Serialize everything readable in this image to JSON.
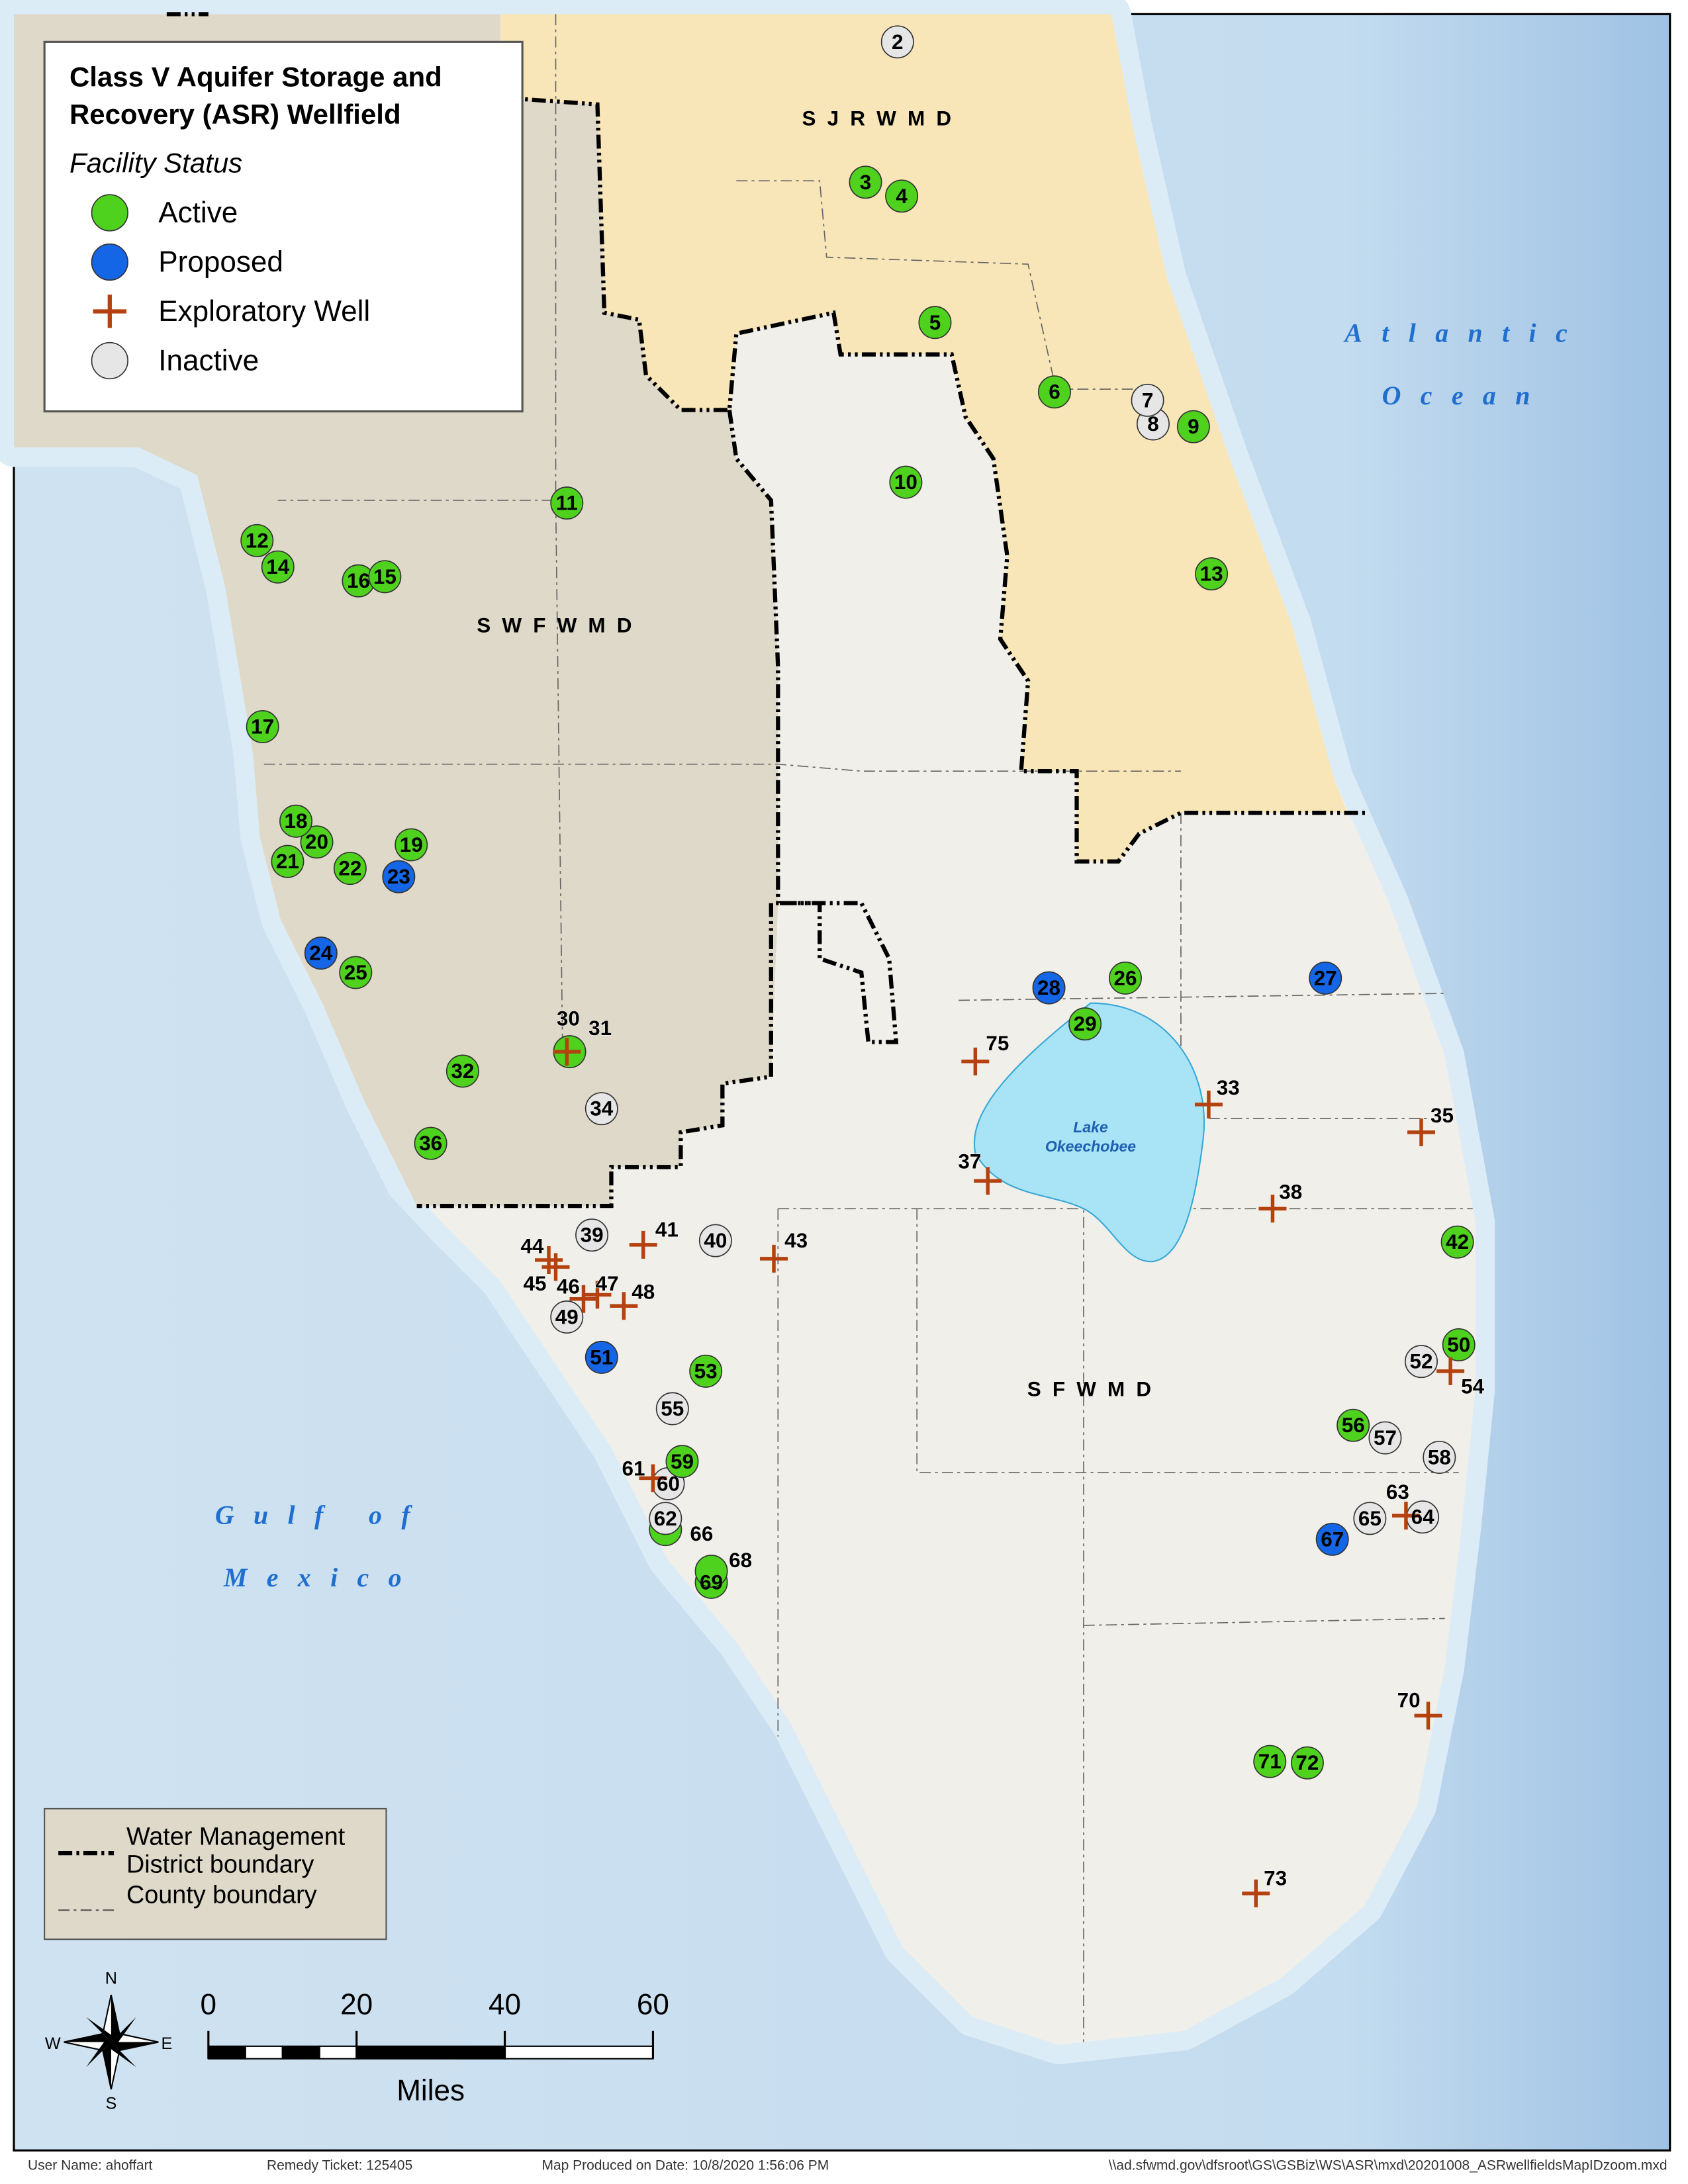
{
  "legend": {
    "title_lines": [
      "Class V Aquifer Storage and",
      "Recovery (ASR) Wellfield"
    ],
    "subtitle": "Facility Status",
    "items": [
      {
        "name": "Active",
        "color": "#4ed21e",
        "marker": "circle"
      },
      {
        "name": "Proposed",
        "color": "#1466e6",
        "marker": "circle"
      },
      {
        "name": "Exploratory Well",
        "color": "#b5410f",
        "marker": "cross"
      },
      {
        "name": "Inactive",
        "color": "#e6e6e6",
        "marker": "circle"
      }
    ]
  },
  "districts": [
    "S J R W M D",
    "S W F W M D",
    "S F W M D"
  ],
  "water_labels": {
    "atlantic": [
      "Atlantic",
      "Ocean"
    ],
    "gulf": [
      "Gulf of",
      "Mexico"
    ],
    "lake": [
      "Lake",
      "Okeechobee"
    ]
  },
  "wells": [
    {
      "label": "2",
      "status": "Inactive"
    },
    {
      "label": "3",
      "status": "Active"
    },
    {
      "label": "4",
      "status": "Active"
    },
    {
      "label": "5",
      "status": "Active"
    },
    {
      "label": "6",
      "status": "Active"
    },
    {
      "label": "7",
      "status": "Inactive"
    },
    {
      "label": "8",
      "status": "Inactive"
    },
    {
      "label": "9",
      "status": "Active"
    },
    {
      "label": "10",
      "status": "Active"
    },
    {
      "label": "11",
      "status": "Active"
    },
    {
      "label": "12",
      "status": "Active"
    },
    {
      "label": "13",
      "status": "Active"
    },
    {
      "label": "14",
      "status": "Active"
    },
    {
      "label": "15",
      "status": "Active"
    },
    {
      "label": "16",
      "status": "Active"
    },
    {
      "label": "17",
      "status": "Active"
    },
    {
      "label": "18",
      "status": "Active"
    },
    {
      "label": "19",
      "status": "Active"
    },
    {
      "label": "20",
      "status": "Active"
    },
    {
      "label": "21",
      "status": "Active"
    },
    {
      "label": "22",
      "status": "Active"
    },
    {
      "label": "23",
      "status": "Proposed"
    },
    {
      "label": "24",
      "status": "Proposed"
    },
    {
      "label": "25",
      "status": "Active"
    },
    {
      "label": "26",
      "status": "Active"
    },
    {
      "label": "27",
      "status": "Proposed"
    },
    {
      "label": "28",
      "status": "Proposed"
    },
    {
      "label": "29",
      "status": "Active"
    },
    {
      "label": "30",
      "status": "Exploratory Well"
    },
    {
      "label": "31",
      "status": "Active"
    },
    {
      "label": "32",
      "status": "Active"
    },
    {
      "label": "33",
      "status": "Exploratory Well"
    },
    {
      "label": "34",
      "status": "Inactive"
    },
    {
      "label": "35",
      "status": "Exploratory Well"
    },
    {
      "label": "36",
      "status": "Active"
    },
    {
      "label": "37",
      "status": "Exploratory Well"
    },
    {
      "label": "38",
      "status": "Exploratory Well"
    },
    {
      "label": "39",
      "status": "Inactive"
    },
    {
      "label": "40",
      "status": "Inactive"
    },
    {
      "label": "41",
      "status": "Exploratory Well"
    },
    {
      "label": "42",
      "status": "Active"
    },
    {
      "label": "43",
      "status": "Exploratory Well"
    },
    {
      "label": "44",
      "status": "Exploratory Well"
    },
    {
      "label": "45",
      "status": "Exploratory Well"
    },
    {
      "label": "46",
      "status": "Exploratory Well"
    },
    {
      "label": "47",
      "status": "Exploratory Well"
    },
    {
      "label": "48",
      "status": "Exploratory Well"
    },
    {
      "label": "49",
      "status": "Inactive"
    },
    {
      "label": "50",
      "status": "Active"
    },
    {
      "label": "51",
      "status": "Proposed"
    },
    {
      "label": "52",
      "status": "Inactive"
    },
    {
      "label": "53",
      "status": "Active"
    },
    {
      "label": "54",
      "status": "Exploratory Well"
    },
    {
      "label": "55",
      "status": "Inactive"
    },
    {
      "label": "56",
      "status": "Active"
    },
    {
      "label": "57",
      "status": "Inactive"
    },
    {
      "label": "58",
      "status": "Inactive"
    },
    {
      "label": "59",
      "status": "Active"
    },
    {
      "label": "60",
      "status": "Inactive"
    },
    {
      "label": "61",
      "status": "Exploratory Well"
    },
    {
      "label": "62",
      "status": "Inactive"
    },
    {
      "label": "63",
      "status": "Exploratory Well"
    },
    {
      "label": "64",
      "status": "Inactive"
    },
    {
      "label": "65",
      "status": "Inactive"
    },
    {
      "label": "66",
      "status": "Active"
    },
    {
      "label": "67",
      "status": "Proposed"
    },
    {
      "label": "68",
      "status": "Active"
    },
    {
      "label": "69",
      "status": "Active"
    },
    {
      "label": "70",
      "status": "Exploratory Well"
    },
    {
      "label": "71",
      "status": "Active"
    },
    {
      "label": "72",
      "status": "Active"
    },
    {
      "label": "73",
      "status": "Exploratory Well"
    },
    {
      "label": "75",
      "status": "Exploratory Well"
    }
  ],
  "boundary_legend": [
    {
      "lines": [
        "Water Management",
        "District boundary"
      ]
    },
    {
      "lines": [
        "County boundary"
      ]
    }
  ],
  "scale": {
    "xlim": [
      0,
      60
    ],
    "ticks": [
      0,
      20,
      40,
      60
    ],
    "unit": "Miles"
  },
  "compass": {
    "n": "N",
    "e": "E",
    "s": "S",
    "w": "W"
  },
  "footer": [
    "User Name: ahoffart",
    "Remedy Ticket:  125405",
    "Map Produced on Date: 10/8/2020 1:56:06 PM",
    "\\\\ad.sfwmd.gov\\dfsroot\\GS\\GSBiz\\WS\\ASR\\mxd\\20201008_ASRwellfieldsMapIDzoom.mxd"
  ]
}
